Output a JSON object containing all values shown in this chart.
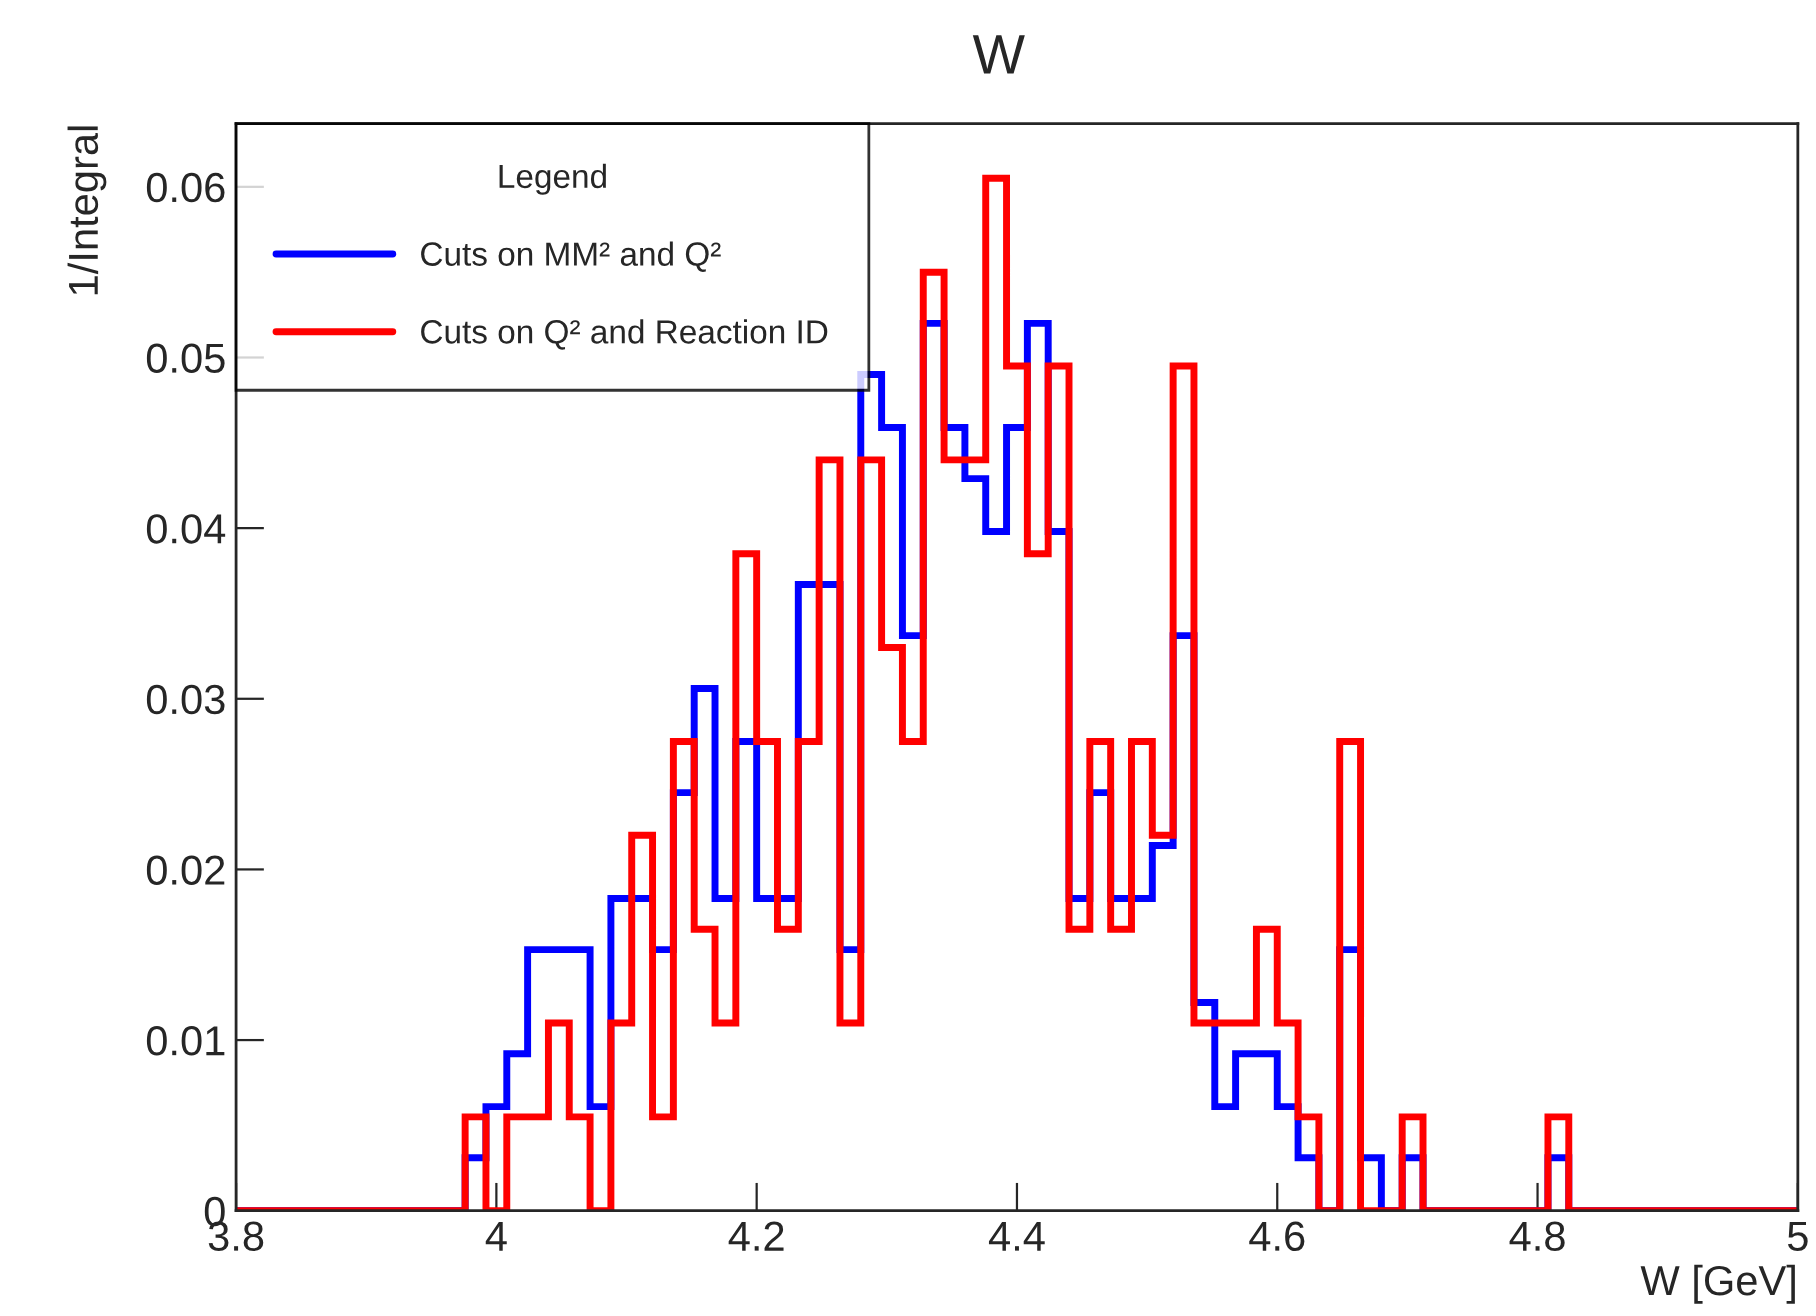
{
  "chart_data": {
    "type": "histogram",
    "title": "W",
    "xlabel": "W [GeV]",
    "ylabel": "1/Integral",
    "legend_title": "Legend",
    "legend": "top left",
    "grid": false,
    "bins": [
      3.8,
      3.816,
      3.832,
      3.848,
      3.864,
      3.88,
      3.896,
      3.912,
      3.928,
      3.944,
      3.96,
      3.976,
      3.992,
      4.008,
      4.024,
      4.04,
      4.056,
      4.072,
      4.088,
      4.104,
      4.12,
      4.136,
      4.152,
      4.168,
      4.184,
      4.2,
      4.216,
      4.232,
      4.248,
      4.264,
      4.28,
      4.296,
      4.312,
      4.328,
      4.344,
      4.36,
      4.376,
      4.392,
      4.408,
      4.424,
      4.44,
      4.456,
      4.472,
      4.488,
      4.504,
      4.52,
      4.536,
      4.552,
      4.568,
      4.584,
      4.6,
      4.616,
      4.632,
      4.648,
      4.664,
      4.68,
      4.696,
      4.712,
      4.728,
      4.744,
      4.76,
      4.776,
      4.792,
      4.808,
      4.824,
      4.84,
      4.856,
      4.872,
      4.888,
      4.904,
      4.92,
      4.936,
      4.952,
      4.968,
      4.984,
      5.0
    ],
    "series": [
      {
        "name": "Cuts on MM² and Q²",
        "color": "#0000ff",
        "values": [
          0,
          0,
          0,
          0,
          0,
          0,
          0,
          0,
          0,
          0,
          0,
          0.0031,
          0.0061,
          0.0092,
          0.0153,
          0.0153,
          0.0153,
          0.0061,
          0.0183,
          0.0183,
          0.0153,
          0.0245,
          0.0306,
          0.0183,
          0.0275,
          0.0183,
          0.0183,
          0.0367,
          0.0367,
          0.0153,
          0.049,
          0.0459,
          0.0337,
          0.052,
          0.0459,
          0.0429,
          0.0398,
          0.0459,
          0.052,
          0.0398,
          0.0183,
          0.0245,
          0.0183,
          0.0183,
          0.0214,
          0.0337,
          0.0122,
          0.0061,
          0.0092,
          0.0092,
          0.0061,
          0.0031,
          0,
          0.0153,
          0.0031,
          0,
          0.0031,
          0,
          0,
          0,
          0,
          0,
          0,
          0.0031,
          0,
          0,
          0,
          0,
          0,
          0,
          0,
          0,
          0,
          0,
          0
        ]
      },
      {
        "name": "Cuts on Q² and Reaction ID",
        "color": "#ff0000",
        "values": [
          0,
          0,
          0,
          0,
          0,
          0,
          0,
          0,
          0,
          0,
          0,
          0.0055,
          0,
          0.0055,
          0.0055,
          0.011,
          0.0055,
          0,
          0.011,
          0.022,
          0.0055,
          0.0275,
          0.0165,
          0.011,
          0.0385,
          0.0275,
          0.0165,
          0.0275,
          0.044,
          0.011,
          0.044,
          0.033,
          0.0275,
          0.055,
          0.044,
          0.044,
          0.0605,
          0.0495,
          0.0385,
          0.0495,
          0.0165,
          0.0275,
          0.0165,
          0.0275,
          0.022,
          0.0495,
          0.011,
          0.011,
          0.011,
          0.0165,
          0.011,
          0.0055,
          0,
          0.0275,
          0,
          0,
          0.0055,
          0,
          0,
          0,
          0,
          0,
          0,
          0.0055,
          0,
          0,
          0,
          0,
          0,
          0,
          0,
          0,
          0,
          0,
          0
        ]
      }
    ],
    "xlim": [
      3.8,
      5
    ],
    "xticks": [
      3.8,
      4,
      4.2,
      4.4,
      4.6,
      4.8,
      5
    ],
    "ylim": [
      0,
      0.0637
    ],
    "yticks": [
      0,
      0.01,
      0.02,
      0.03,
      0.04,
      0.05,
      0.06
    ]
  }
}
